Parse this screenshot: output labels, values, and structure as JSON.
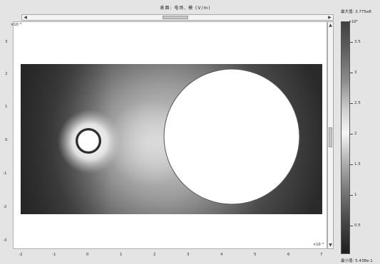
{
  "window": {
    "title": "表面: 电场, 模 (V/m)",
    "max_label": "最大值: 3.775e8",
    "min_label": "最小值: 5.438e-1"
  },
  "scrollbar": {
    "left_arrow": "◀",
    "right_arrow": "▶",
    "up_arrow": "▲",
    "down_arrow": "▼"
  },
  "plot": {
    "x_scale_factor": "×10⁻³",
    "y_scale_factor": "×10⁻³",
    "x_ticks": [
      "-2",
      "-1",
      "0",
      "1",
      "2",
      "3",
      "4",
      "5",
      "6",
      "7"
    ],
    "y_ticks": [
      "3",
      "2",
      "1",
      "0",
      "-1",
      "-2",
      "-3"
    ]
  },
  "colorbar": {
    "scale_factor": "×10⁸",
    "ticks": [
      "3.5",
      "3",
      "2.5",
      "2",
      "1.5",
      "1",
      "0.5"
    ]
  }
}
